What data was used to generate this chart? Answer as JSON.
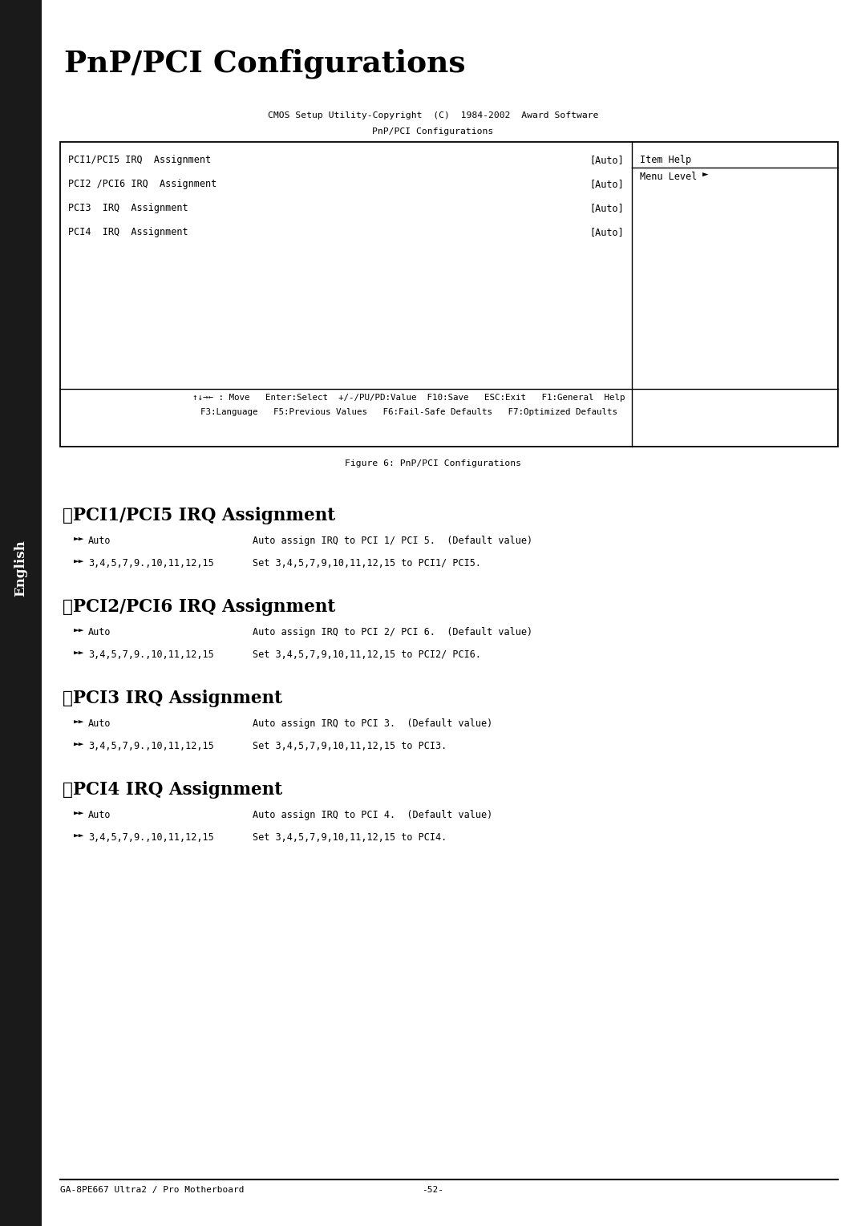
{
  "bg_color": "#ffffff",
  "sidebar_color": "#1a1a1a",
  "sidebar_text": "English",
  "main_title": "PnP/PCI Configurations",
  "bios_line1": "CMOS Setup Utility-Copyright  (C)  1984-2002  Award Software",
  "bios_line2": "PnP/PCI Configurations",
  "table_items": [
    [
      "PCI1/PCI5 IRQ  Assignment",
      "[Auto]"
    ],
    [
      "PCI2 /PCI6 IRQ  Assignment",
      "[Auto]"
    ],
    [
      "PCI3  IRQ  Assignment",
      "[Auto]"
    ],
    [
      "PCI4  IRQ  Assignment",
      "[Auto]"
    ]
  ],
  "item_help_title": "Item Help",
  "menu_level": "Menu Level",
  "nav_line1": "↑↓→← : Move   Enter:Select  +/-/PU/PD:Value  F10:Save   ESC:Exit   F1:General  Help",
  "nav_line2": "F3:Language   F5:Previous Values   F6:Fail-Safe Defaults   F7:Optimized Defaults",
  "figure_caption": "Figure 6: PnP/PCI Configurations",
  "sections": [
    {
      "title": "PCI1/PCI5 IRQ Assignment",
      "items": [
        {
          "option": "Auto",
          "desc": "Auto assign IRQ to PCI 1/ PCI 5.  (Default value)"
        },
        {
          "option": "3,4,5,7,9.,10,11,12,15",
          "desc": "Set 3,4,5,7,9,10,11,12,15 to PCI1/ PCI5."
        }
      ]
    },
    {
      "title": "PCI2/PCI6 IRQ Assignment",
      "items": [
        {
          "option": "Auto",
          "desc": "Auto assign IRQ to PCI 2/ PCI 6.  (Default value)"
        },
        {
          "option": "3,4,5,7,9.,10,11,12,15",
          "desc": "Set 3,4,5,7,9,10,11,12,15 to PCI2/ PCI6."
        }
      ]
    },
    {
      "title": "PCI3 IRQ Assignment",
      "items": [
        {
          "option": "Auto",
          "desc": "Auto assign IRQ to PCI 3.  (Default value)"
        },
        {
          "option": "3,4,5,7,9.,10,11,12,15",
          "desc": "Set 3,4,5,7,9,10,11,12,15 to PCI3."
        }
      ]
    },
    {
      "title": "PCI4 IRQ Assignment",
      "items": [
        {
          "option": "Auto",
          "desc": "Auto assign IRQ to PCI 4.  (Default value)"
        },
        {
          "option": "3,4,5,7,9.,10,11,12,15",
          "desc": "Set 3,4,5,7,9,10,11,12,15 to PCI4."
        }
      ]
    }
  ],
  "footer_left": "GA-8PE667 Ultra2 / Pro Motherboard",
  "footer_center": "-52-",
  "font_mono": "monospace",
  "font_serif": "serif"
}
